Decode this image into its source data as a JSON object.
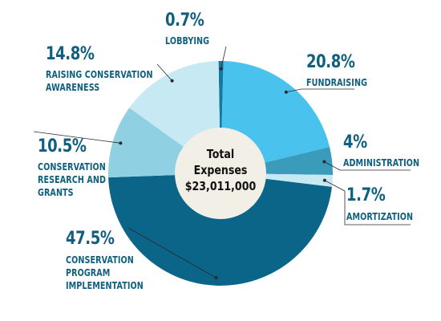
{
  "chart_data": {
    "type": "pie",
    "center": {
      "title": "Total Expenses",
      "total": "$23,011,000"
    },
    "slices": [
      {
        "label_lines": [
          "LOBBYING"
        ],
        "percent_text": "0.7%",
        "value": 0.7,
        "color": "#1478a0"
      },
      {
        "label_lines": [
          "FUNDRAISING"
        ],
        "percent_text": "20.8%",
        "value": 20.8,
        "color": "#49c3ee"
      },
      {
        "label_lines": [
          "ADMINISTRATION"
        ],
        "percent_text": "4%",
        "value": 4,
        "color": "#3a9bbb"
      },
      {
        "label_lines": [
          "AMORTIZATION"
        ],
        "percent_text": "1.7%",
        "value": 1.7,
        "color": "#c6e9f4"
      },
      {
        "label_lines": [
          "CONSERVATION",
          "PROGRAM",
          "IMPLEMENTATION"
        ],
        "percent_text": "47.5%",
        "value": 47.5,
        "color": "#0b6588"
      },
      {
        "label_lines": [
          "CONSERVATION",
          "RESEARCH AND",
          "GRANTS"
        ],
        "percent_text": "10.5%",
        "value": 10.5,
        "color": "#8fd1e3"
      },
      {
        "label_lines": [
          "RAISING CONSERVATION",
          "AWARENESS"
        ],
        "percent_text": "14.8%",
        "value": 14.8,
        "color": "#c6e9f4"
      }
    ]
  }
}
